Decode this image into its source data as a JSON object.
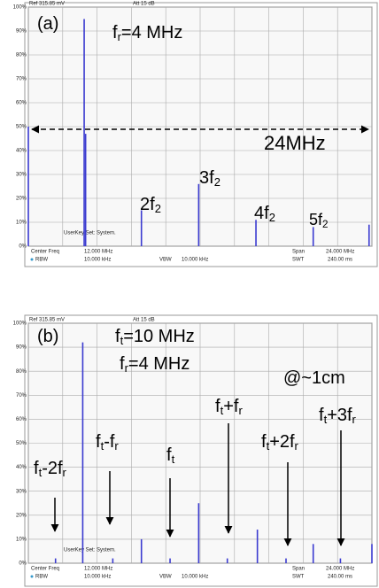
{
  "chart_data": [
    {
      "type": "bar",
      "header": [
        "Ref 315.85 mV",
        "Att 15 dB"
      ],
      "footer": [
        "Center Freq",
        "12.000 MHz",
        "Span",
        "24.000 MHz",
        "RBW",
        "10.000 kHz",
        "VBW",
        "10.000 kHz",
        "SWT",
        "240.00 ms"
      ],
      "softkey": "UserKey Set:  System.",
      "annotations": [
        {
          "parts": [
            "(a)"
          ]
        },
        {
          "parts": [
            "f",
            "r",
            "=4 MHz"
          ]
        },
        {
          "parts": [
            "24MHz"
          ]
        },
        {
          "parts": [
            "2f",
            "2"
          ]
        },
        {
          "parts": [
            "3f",
            "2"
          ]
        },
        {
          "parts": [
            "4f",
            "2"
          ]
        },
        {
          "parts": [
            "5f",
            "2"
          ]
        }
      ],
      "x": [
        0,
        3.9,
        4.0,
        7.9,
        11.9,
        15.9,
        19.9,
        23.8
      ],
      "values": [
        50,
        95,
        47,
        15,
        26,
        11,
        8,
        9
      ],
      "color": "#3a3ad0",
      "xlim": [
        0,
        24
      ],
      "ylim": [
        0,
        100
      ],
      "xticks": [
        0,
        2.4,
        4.8,
        7.2,
        9.6,
        12,
        14.4,
        16.8,
        19.2,
        21.6,
        24
      ],
      "yticks": [
        {
          "value": 0,
          "label": "0%"
        },
        {
          "value": 10,
          "label": "10%"
        },
        {
          "value": 20,
          "label": "20%"
        },
        {
          "value": 30,
          "label": "30%"
        },
        {
          "value": 40,
          "label": "40%"
        },
        {
          "value": 50,
          "label": "50%"
        },
        {
          "value": 60,
          "label": "60%"
        },
        {
          "value": 70,
          "label": "70%"
        },
        {
          "value": 80,
          "label": "80%"
        },
        {
          "value": 90,
          "label": "90%"
        },
        {
          "value": 100,
          "label": "100%"
        }
      ],
      "grid": true
    },
    {
      "type": "bar",
      "header": [
        "Ref 315.85 mV",
        "Att 15 dB"
      ],
      "footer": [
        "Center Freq",
        "12.000 MHz",
        "Span",
        "24.000 MHz",
        "RBW",
        "10.000 kHz",
        "VBW",
        "10.000 kHz",
        "SWT",
        "240.00 ms"
      ],
      "softkey": "UserKey Set:  System.",
      "annotations": [
        {
          "parts": [
            "(b)"
          ]
        },
        {
          "parts": [
            "f",
            "t",
            "=10 MHz"
          ]
        },
        {
          "parts": [
            "f",
            "r",
            "=4 MHz"
          ]
        },
        {
          "parts": [
            "@~1cm"
          ]
        },
        {
          "parts": [
            "f",
            "t",
            "-2f",
            "r"
          ]
        },
        {
          "parts": [
            "f",
            "t",
            "-f",
            "r"
          ]
        },
        {
          "parts": [
            "f",
            "t"
          ]
        },
        {
          "parts": [
            "f",
            "t",
            "+f",
            "r"
          ]
        },
        {
          "parts": [
            "f",
            "t",
            "+2f",
            "r"
          ]
        },
        {
          "parts": [
            "f",
            "t",
            "+3f",
            "r"
          ]
        }
      ],
      "x": [
        1.9,
        3.8,
        5.9,
        7.9,
        9.9,
        11.9,
        13.9,
        16.0,
        18.0,
        19.9,
        21.8,
        24.0
      ],
      "values": [
        2,
        92,
        2,
        10,
        2,
        25,
        2,
        14,
        2,
        8,
        2,
        8
      ],
      "color": "#3a3ad0",
      "xlim": [
        0,
        24
      ],
      "ylim": [
        0,
        100
      ],
      "xticks": [
        0,
        2.4,
        4.8,
        7.2,
        9.6,
        12,
        14.4,
        16.8,
        19.2,
        21.6,
        24
      ],
      "yticks": [
        {
          "value": 0,
          "label": "0%"
        },
        {
          "value": 10,
          "label": "10%"
        },
        {
          "value": 20,
          "label": "20%"
        },
        {
          "value": 30,
          "label": "30%"
        },
        {
          "value": 40,
          "label": "40%"
        },
        {
          "value": 50,
          "label": "50%"
        },
        {
          "value": 60,
          "label": "60%"
        },
        {
          "value": 70,
          "label": "70%"
        },
        {
          "value": 80,
          "label": "80%"
        },
        {
          "value": 90,
          "label": "90%"
        },
        {
          "value": 100,
          "label": "100%"
        }
      ],
      "grid": true
    }
  ]
}
